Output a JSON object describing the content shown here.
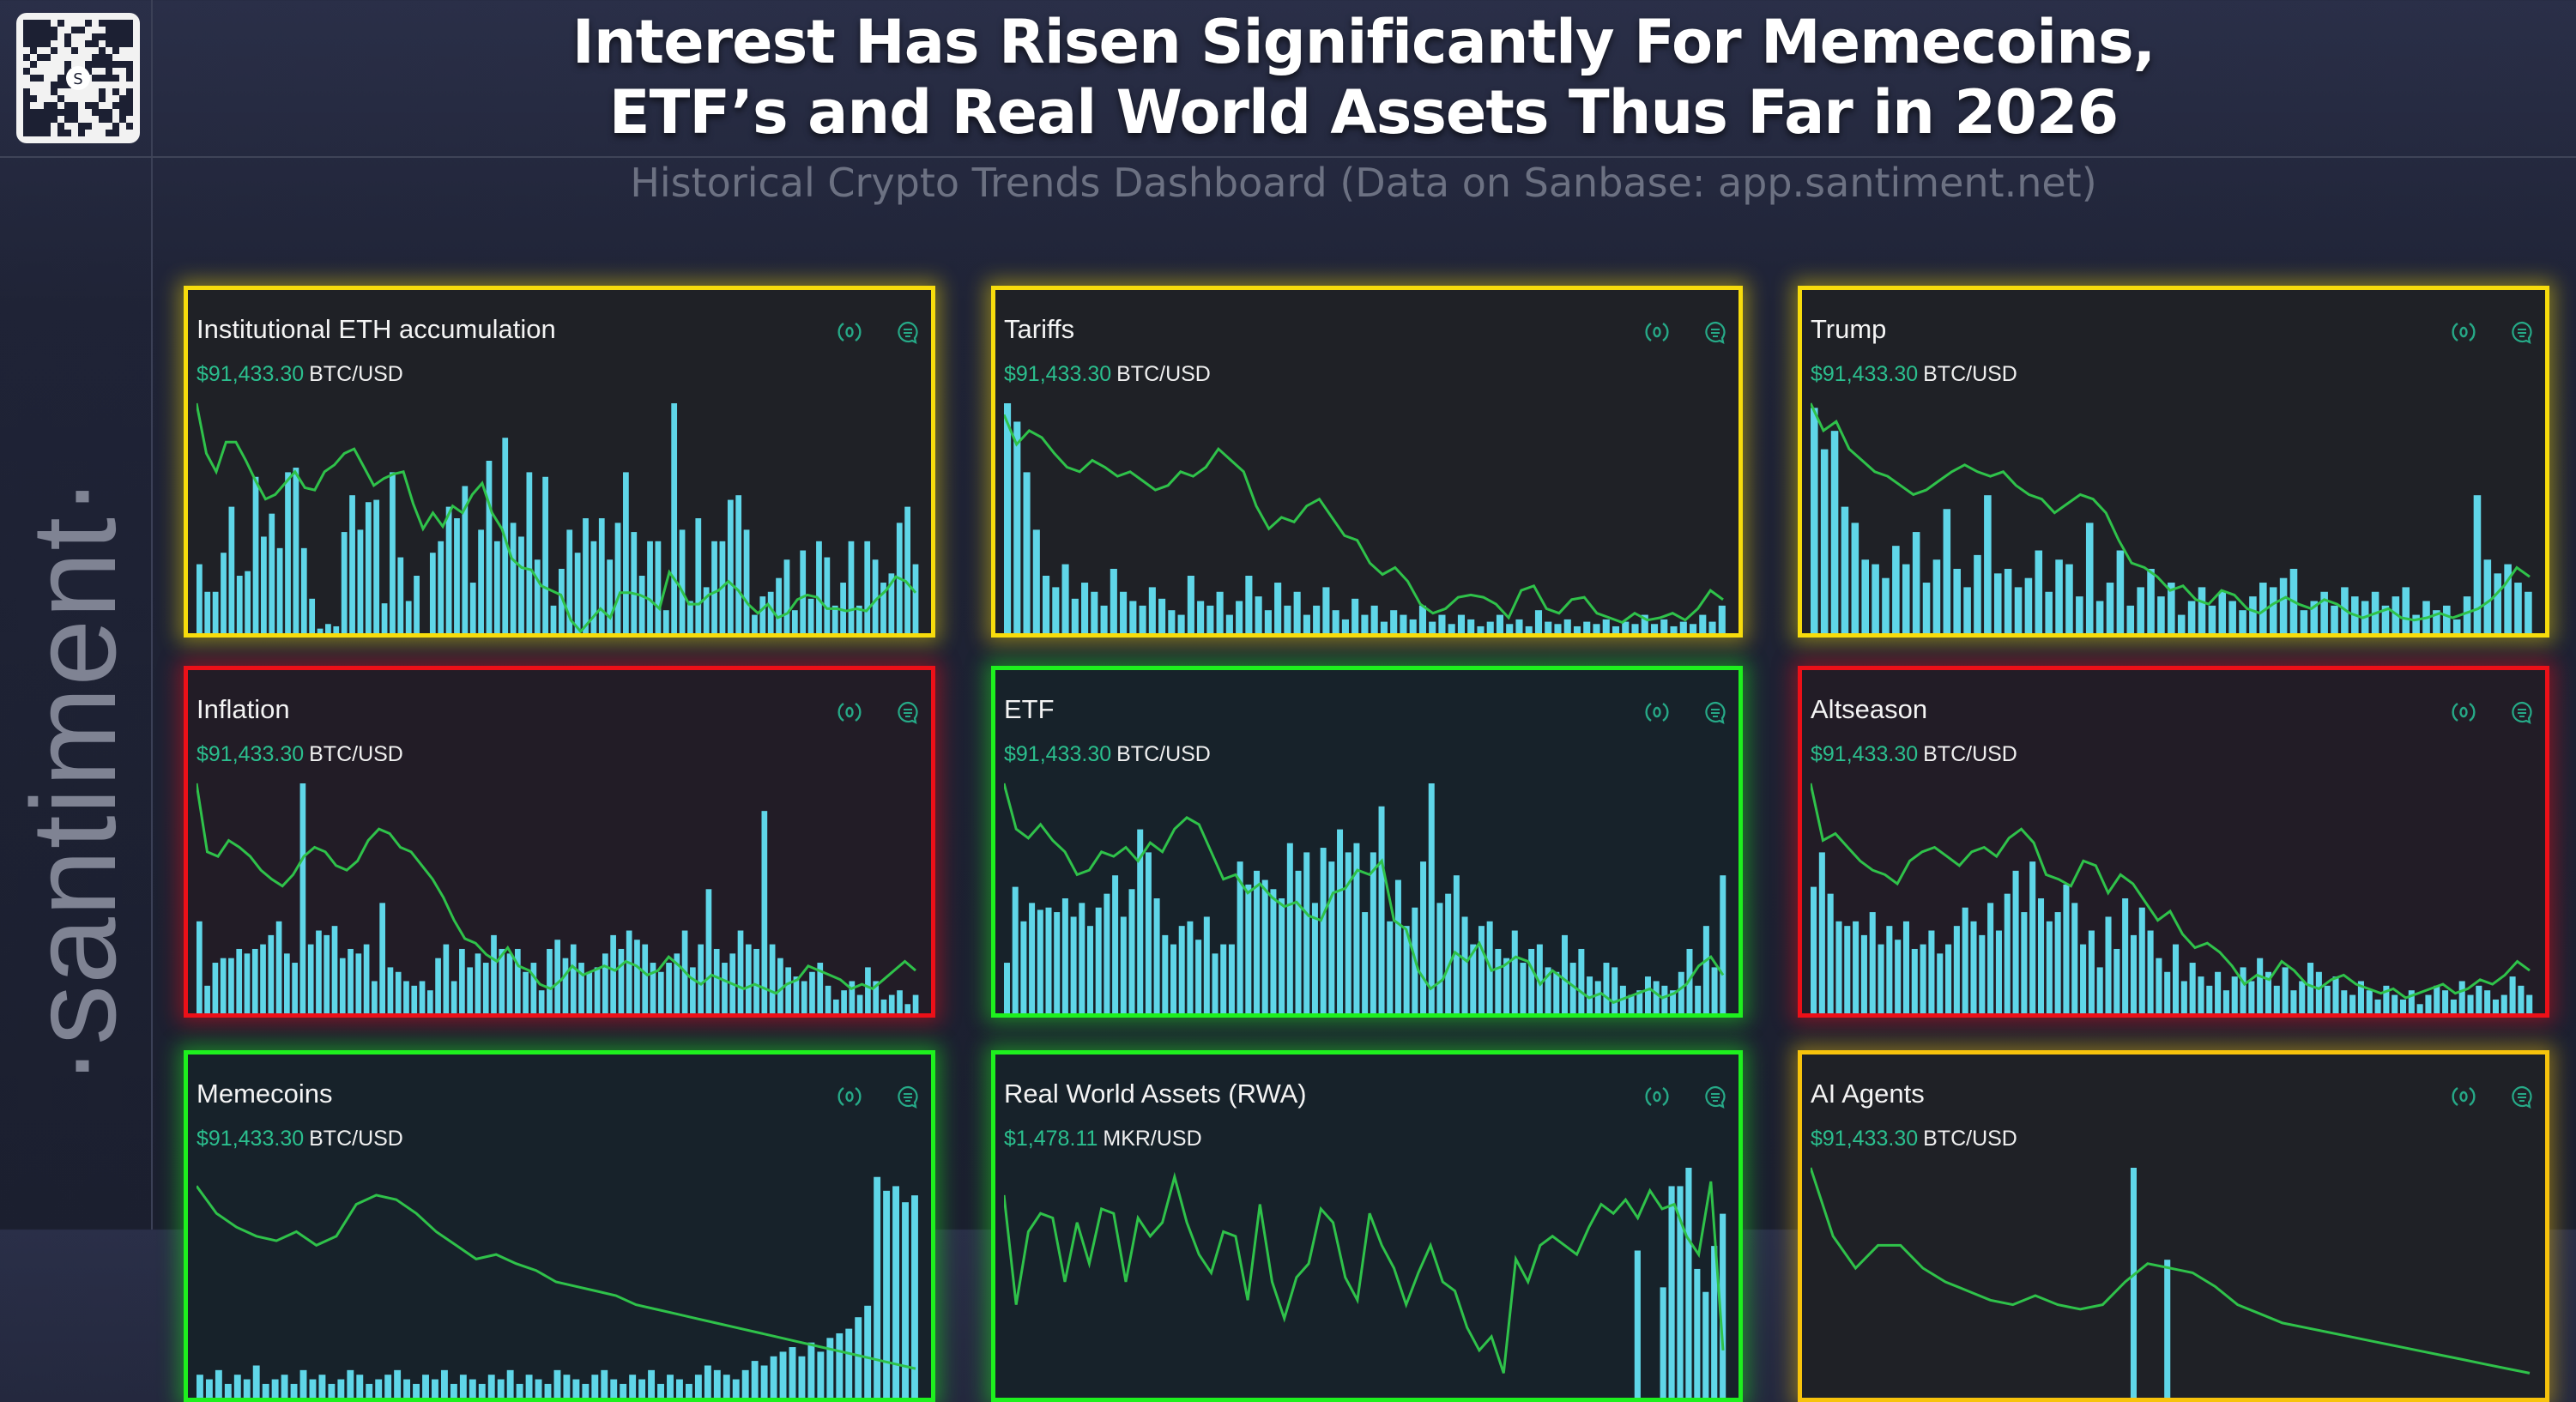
{
  "header": {
    "title_line1": "Interest Has Risen Significantly For Memecoins,",
    "title_line2": "ETF’s and Real World Assets Thus Far in 2026",
    "subtitle": "Historical Crypto Trends Dashboard (Data on Sanbase: app.santiment.net)"
  },
  "brand": {
    "name": "·santiment·",
    "qr_label": "S"
  },
  "colors": {
    "bars": "#5fd6e8",
    "line": "#2fc24a",
    "price": "#2bbf8e",
    "icons": "#26a987",
    "yellow": "#f7dc0c",
    "red": "#ec1018",
    "green": "#1ef01e",
    "orange": "#f7c30c"
  },
  "icons": [
    "signal-icon",
    "comment-icon"
  ],
  "chart_data": [
    {
      "type": "bar+line",
      "title": "Institutional ETH accumulation",
      "price": "$91,433.30",
      "pair": "BTC/USD",
      "highlight": "yellow",
      "bars": [
        30,
        18,
        18,
        35,
        55,
        25,
        27,
        68,
        42,
        52,
        37,
        70,
        72,
        37,
        15,
        2,
        4,
        3,
        44,
        60,
        45,
        57,
        58,
        13,
        70,
        33,
        14,
        25,
        0,
        35,
        40,
        55,
        50,
        64,
        22,
        45,
        75,
        40,
        85,
        48,
        42,
        70,
        32,
        68,
        12,
        28,
        45,
        35,
        50,
        40,
        50,
        32,
        48,
        70,
        44,
        25,
        40,
        40,
        10,
        100,
        45,
        14,
        50,
        20,
        40,
        40,
        58,
        60,
        45,
        8,
        16,
        18,
        24,
        32,
        10,
        36,
        15,
        40,
        33,
        12,
        22,
        40,
        12,
        40,
        32,
        22,
        26,
        48,
        55,
        30
      ],
      "line": [
        100,
        78,
        70,
        83,
        83,
        75,
        66,
        58,
        60,
        65,
        70,
        63,
        62,
        70,
        73,
        78,
        80,
        72,
        64,
        67,
        69,
        70,
        56,
        45,
        52,
        46,
        55,
        52,
        60,
        65,
        52,
        45,
        32,
        28,
        27,
        20,
        18,
        16,
        5,
        0,
        5,
        10,
        6,
        17,
        17,
        16,
        14,
        10,
        26,
        20,
        12,
        12,
        16,
        18,
        22,
        18,
        12,
        8,
        12,
        6,
        8,
        14,
        16,
        15,
        10,
        10,
        9,
        10,
        9,
        14,
        18,
        24,
        22,
        17
      ]
    },
    {
      "type": "bar+line",
      "title": "Tariffs",
      "price": "$91,433.30",
      "pair": "BTC/USD",
      "highlight": "yellow",
      "bars": [
        100,
        92,
        70,
        45,
        25,
        20,
        30,
        15,
        22,
        18,
        12,
        28,
        18,
        14,
        12,
        20,
        15,
        10,
        8,
        25,
        14,
        12,
        18,
        8,
        14,
        25,
        16,
        10,
        22,
        12,
        18,
        8,
        12,
        20,
        10,
        6,
        15,
        8,
        12,
        5,
        10,
        8,
        6,
        12,
        5,
        8,
        4,
        8,
        6,
        3,
        5,
        8,
        4,
        6,
        3,
        10,
        5,
        4,
        6,
        3,
        5,
        4,
        6,
        3,
        5,
        4,
        8,
        4,
        6,
        3,
        5,
        4,
        8,
        5,
        12
      ],
      "line": [
        95,
        82,
        88,
        85,
        78,
        72,
        70,
        75,
        72,
        68,
        70,
        66,
        62,
        64,
        70,
        68,
        72,
        80,
        75,
        70,
        55,
        45,
        50,
        48,
        55,
        58,
        50,
        42,
        40,
        30,
        25,
        28,
        22,
        12,
        8,
        10,
        15,
        16,
        15,
        12,
        6,
        18,
        20,
        10,
        8,
        14,
        15,
        8,
        6,
        4,
        8,
        5,
        6,
        8,
        5,
        10,
        18,
        14
      ]
    },
    {
      "type": "bar+line",
      "title": "Trump",
      "price": "$91,433.30",
      "pair": "BTC/USD",
      "highlight": "yellow",
      "bars": [
        98,
        80,
        88,
        55,
        48,
        32,
        30,
        24,
        38,
        30,
        44,
        22,
        32,
        54,
        28,
        20,
        34,
        60,
        26,
        28,
        20,
        24,
        36,
        18,
        32,
        30,
        16,
        48,
        14,
        22,
        36,
        12,
        20,
        28,
        16,
        22,
        8,
        14,
        20,
        12,
        18,
        14,
        10,
        16,
        22,
        20,
        24,
        28,
        10,
        14,
        18,
        12,
        20,
        16,
        14,
        18,
        12,
        16,
        20,
        8,
        14,
        10,
        12,
        6,
        16,
        60,
        32,
        26,
        30,
        22,
        18
      ],
      "line": [
        100,
        88,
        92,
        80,
        75,
        70,
        68,
        64,
        60,
        62,
        66,
        70,
        73,
        70,
        68,
        70,
        64,
        60,
        58,
        52,
        56,
        60,
        58,
        52,
        40,
        30,
        28,
        24,
        18,
        20,
        14,
        12,
        18,
        16,
        10,
        8,
        12,
        15,
        12,
        10,
        14,
        12,
        8,
        6,
        8,
        10,
        6,
        5,
        6,
        8,
        6,
        8,
        10,
        14,
        20,
        28,
        24
      ]
    },
    {
      "type": "bar+line",
      "title": "Inflation",
      "price": "$91,433.30",
      "pair": "BTC/USD",
      "highlight": "red",
      "bars": [
        40,
        12,
        22,
        24,
        24,
        28,
        26,
        28,
        30,
        34,
        40,
        26,
        22,
        100,
        30,
        36,
        34,
        38,
        24,
        28,
        26,
        30,
        14,
        48,
        20,
        18,
        14,
        12,
        14,
        10,
        24,
        30,
        14,
        28,
        20,
        26,
        22,
        34,
        28,
        26,
        28,
        18,
        22,
        10,
        28,
        32,
        24,
        30,
        22,
        18,
        20,
        26,
        34,
        28,
        36,
        32,
        30,
        22,
        18,
        22,
        26,
        36,
        20,
        30,
        54,
        28,
        22,
        26,
        36,
        30,
        28,
        88,
        30,
        24,
        20,
        16,
        14,
        18,
        22,
        12,
        6,
        10,
        14,
        8,
        20,
        14,
        6,
        8,
        10,
        4,
        8
      ],
      "line": [
        100,
        70,
        68,
        75,
        72,
        68,
        62,
        58,
        55,
        60,
        68,
        72,
        70,
        64,
        62,
        66,
        75,
        80,
        78,
        72,
        70,
        64,
        58,
        50,
        40,
        32,
        30,
        25,
        22,
        28,
        20,
        18,
        12,
        10,
        14,
        20,
        16,
        18,
        20,
        18,
        22,
        20,
        16,
        18,
        24,
        20,
        15,
        12,
        16,
        14,
        12,
        10,
        12,
        10,
        8,
        12,
        14,
        20,
        18,
        16,
        14,
        10,
        12,
        10,
        14,
        18,
        22,
        18
      ]
    },
    {
      "type": "bar+line",
      "title": "ETF",
      "price": "$91,433.30",
      "pair": "BTC/USD",
      "highlight": "green",
      "bars": [
        22,
        55,
        40,
        48,
        45,
        46,
        44,
        50,
        42,
        48,
        38,
        46,
        52,
        60,
        42,
        54,
        80,
        70,
        50,
        34,
        30,
        38,
        40,
        32,
        42,
        26,
        30,
        30,
        66,
        56,
        62,
        58,
        54,
        50,
        74,
        62,
        70,
        48,
        72,
        66,
        80,
        70,
        74,
        44,
        70,
        90,
        40,
        58,
        38,
        46,
        66,
        100,
        48,
        52,
        60,
        42,
        30,
        38,
        40,
        28,
        24,
        36,
        22,
        28,
        30,
        20,
        18,
        34,
        22,
        28,
        16,
        14,
        22,
        20,
        12,
        8,
        10,
        16,
        14,
        12,
        10,
        18,
        28,
        12,
        38,
        20,
        60
      ],
      "line": [
        100,
        80,
        76,
        82,
        75,
        70,
        60,
        62,
        70,
        68,
        72,
        66,
        74,
        70,
        80,
        85,
        82,
        70,
        58,
        60,
        52,
        56,
        50,
        46,
        48,
        42,
        40,
        52,
        54,
        62,
        60,
        66,
        40,
        36,
        18,
        10,
        14,
        26,
        22,
        30,
        18,
        20,
        24,
        22,
        12,
        18,
        14,
        10,
        6,
        8,
        4,
        6,
        8,
        10,
        6,
        8,
        12,
        20,
        24,
        16
      ]
    },
    {
      "type": "bar+line",
      "title": "Altseason",
      "price": "$91,433.30",
      "pair": "BTC/USD",
      "highlight": "red",
      "bars": [
        55,
        70,
        52,
        40,
        38,
        40,
        34,
        44,
        30,
        38,
        32,
        40,
        28,
        30,
        36,
        26,
        30,
        38,
        46,
        40,
        34,
        48,
        36,
        52,
        62,
        44,
        66,
        50,
        40,
        44,
        56,
        48,
        30,
        36,
        20,
        42,
        28,
        50,
        34,
        46,
        36,
        24,
        18,
        30,
        14,
        22,
        16,
        12,
        18,
        10,
        16,
        20,
        14,
        24,
        18,
        12,
        20,
        10,
        14,
        22,
        18,
        12,
        16,
        10,
        8,
        14,
        10,
        6,
        12,
        8,
        6,
        10,
        4,
        8,
        12,
        10,
        6,
        14,
        8,
        12,
        10,
        6,
        8,
        16,
        12,
        8
      ],
      "line": [
        100,
        75,
        78,
        72,
        66,
        62,
        60,
        56,
        66,
        70,
        72,
        68,
        64,
        70,
        72,
        68,
        76,
        80,
        74,
        60,
        58,
        55,
        66,
        64,
        52,
        60,
        56,
        48,
        40,
        44,
        34,
        28,
        30,
        26,
        20,
        12,
        16,
        14,
        22,
        18,
        12,
        10,
        14,
        16,
        12,
        10,
        8,
        10,
        6,
        8,
        10,
        12,
        8,
        10,
        14,
        12,
        16,
        22,
        18
      ]
    },
    {
      "type": "bar+line",
      "title": "Memecoins",
      "price": "$91,433.30",
      "pair": "BTC/USD",
      "highlight": "green",
      "bars": [
        10,
        8,
        12,
        6,
        10,
        8,
        14,
        6,
        8,
        10,
        6,
        12,
        8,
        10,
        6,
        8,
        12,
        10,
        6,
        8,
        10,
        12,
        8,
        6,
        10,
        8,
        12,
        6,
        10,
        8,
        6,
        10,
        8,
        12,
        6,
        10,
        8,
        6,
        12,
        10,
        8,
        6,
        10,
        12,
        8,
        6,
        10,
        8,
        12,
        6,
        10,
        8,
        6,
        10,
        14,
        12,
        10,
        8,
        12,
        16,
        14,
        18,
        20,
        22,
        18,
        24,
        20,
        26,
        28,
        30,
        35,
        40,
        96,
        90,
        92,
        85,
        88
      ],
      "line": [
        92,
        80,
        74,
        70,
        68,
        72,
        66,
        70,
        84,
        88,
        86,
        80,
        72,
        66,
        60,
        62,
        58,
        55,
        50,
        48,
        46,
        44,
        40,
        38,
        36,
        34,
        32,
        30,
        28,
        26,
        24,
        22,
        20,
        18,
        16,
        14,
        12
      ]
    },
    {
      "type": "bar+line",
      "title": "Real World Assets (RWA)",
      "price": "$1,478.11",
      "pair": "MKR/USD",
      "highlight": "green",
      "bars": [
        0,
        0,
        0,
        0,
        0,
        0,
        0,
        0,
        0,
        0,
        0,
        0,
        0,
        0,
        0,
        0,
        0,
        0,
        0,
        0,
        0,
        0,
        0,
        0,
        0,
        0,
        0,
        0,
        0,
        0,
        0,
        0,
        0,
        0,
        0,
        0,
        0,
        0,
        0,
        0,
        0,
        0,
        0,
        0,
        0,
        0,
        0,
        0,
        0,
        0,
        0,
        0,
        0,
        0,
        0,
        0,
        0,
        0,
        0,
        0,
        0,
        0,
        0,
        0,
        0,
        0,
        0,
        0,
        0,
        0,
        0,
        0,
        0,
        0,
        64,
        0,
        0,
        48,
        92,
        92,
        100,
        56,
        46,
        66,
        80
      ],
      "line": [
        88,
        40,
        72,
        80,
        78,
        50,
        76,
        58,
        82,
        80,
        50,
        78,
        70,
        76,
        96,
        76,
        62,
        54,
        72,
        70,
        42,
        84,
        50,
        34,
        52,
        58,
        82,
        76,
        52,
        42,
        80,
        66,
        56,
        40,
        54,
        66,
        50,
        46,
        30,
        20,
        26,
        10,
        60,
        50,
        66,
        70,
        66,
        62,
        74,
        84,
        80,
        86,
        78,
        90,
        82,
        84,
        70,
        62,
        94,
        20
      ]
    },
    {
      "type": "bar+line",
      "title": "AI Agents",
      "price": "$91,433.30",
      "pair": "BTC/USD",
      "highlight": "orange",
      "bars": [
        0,
        0,
        0,
        0,
        0,
        0,
        0,
        0,
        0,
        0,
        0,
        0,
        0,
        0,
        0,
        0,
        0,
        0,
        0,
        0,
        0,
        0,
        0,
        0,
        0,
        0,
        0,
        0,
        0,
        0,
        0,
        0,
        0,
        0,
        0,
        0,
        0,
        0,
        100,
        0,
        0,
        0,
        60,
        0,
        0,
        0,
        0,
        0,
        0,
        0,
        0,
        0,
        0,
        0,
        0,
        0,
        0,
        0,
        0,
        0,
        0,
        0,
        0,
        0,
        0,
        0,
        0,
        0,
        0,
        0,
        0,
        0,
        0,
        0,
        0,
        0,
        0,
        0,
        0,
        0,
        0,
        0,
        0,
        0,
        0,
        0
      ],
      "line": [
        100,
        70,
        56,
        66,
        66,
        56,
        50,
        46,
        42,
        40,
        44,
        40,
        38,
        40,
        50,
        58,
        56,
        54,
        48,
        40,
        36,
        32,
        30,
        28,
        26,
        24,
        22,
        20,
        18,
        16,
        14,
        12,
        10
      ]
    }
  ]
}
